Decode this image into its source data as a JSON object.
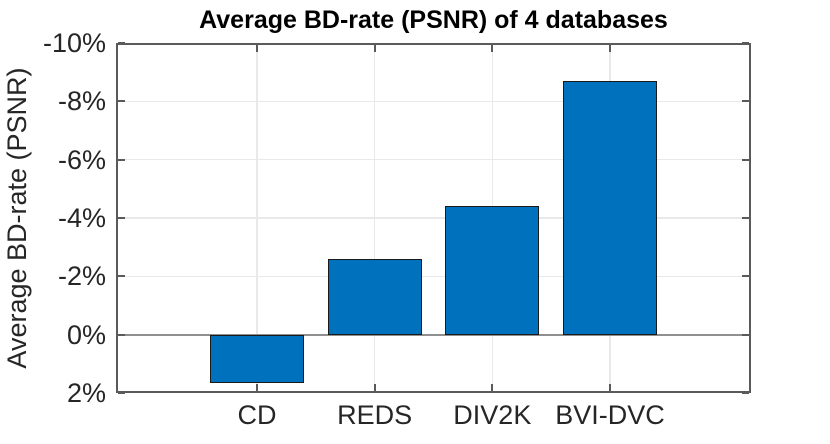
{
  "figure": {
    "background": "#ffffff"
  },
  "chart_data": {
    "type": "bar",
    "title": "Average BD-rate (PSNR) of 4 databases",
    "ylabel": "Average BD-rate (PSNR)",
    "xlabel": "",
    "categories": [
      "CD",
      "REDS",
      "DIV2K",
      "BVI-DVC"
    ],
    "values": [
      1.65,
      -2.6,
      -4.4,
      -8.7
    ],
    "unit": "%",
    "y_axis": {
      "min": -10,
      "max": 2,
      "step": 2,
      "direction": "reversed-negative-up",
      "tick_values": [
        -10,
        -8,
        -6,
        -4,
        -2,
        0,
        2
      ],
      "tick_labels": [
        "-10%",
        "-8%",
        "-6%",
        "-4%",
        "-2%",
        "0%",
        "2%"
      ]
    },
    "grid": true,
    "legend": null,
    "colors": {
      "bar_fill": "#0072BD",
      "bar_edge": "#1a1a1a",
      "axis": "#5a5a5a",
      "grid": "#e9e9e9",
      "zero_line": "#8f8f8f",
      "tick_text": "#262626",
      "title_text": "#000000"
    }
  }
}
